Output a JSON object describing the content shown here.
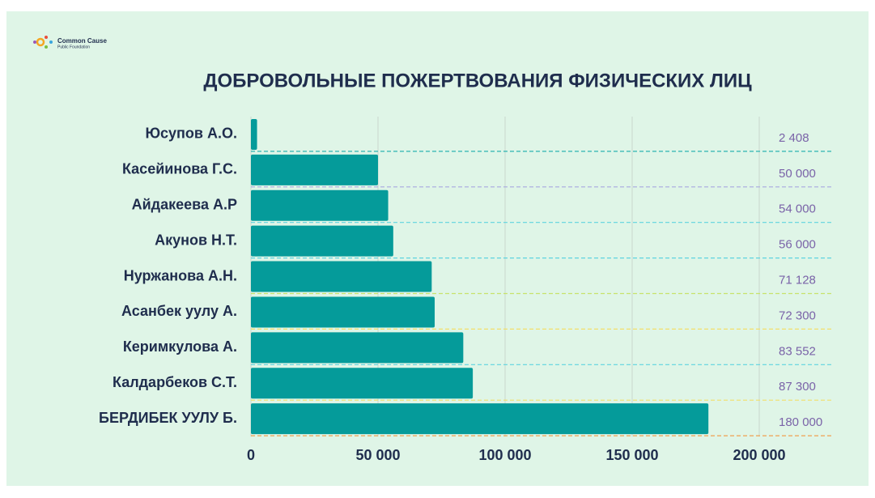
{
  "logo": {
    "name": "Common Cause",
    "subtitle": "Public Foundation"
  },
  "chart_data": {
    "type": "hbar",
    "title": "ДОБРОВОЛЬНЫЕ ПОЖЕРТВОВАНИЯ ФИЗИЧЕСКИХ ЛИЦ",
    "categories": [
      "Юсупов А.О.",
      "Касейинова Г.С.",
      "Айдакеева А.Р",
      "Акунов Н.Т.",
      "Нуржанова А.Н.",
      "Асанбек уулу А.",
      "Керимкулова А.",
      "Калдарбеков С.Т.",
      "БЕРДИБЕК УУЛУ Б."
    ],
    "values": [
      2408,
      50000,
      54000,
      56000,
      71128,
      72300,
      83552,
      87300,
      180000
    ],
    "value_labels": [
      "2 408",
      "50 000",
      "54 000",
      "56 000",
      "71 128",
      "72 300",
      "83 552",
      "87 300",
      "180 000"
    ],
    "color": "#059b9a",
    "xlim": [
      0,
      200000
    ],
    "xticks": [
      0,
      {
        "value": 50000,
        "label": "50 000"
      },
      {
        "value": 100000,
        "label": "100 000"
      },
      {
        "value": 150000,
        "label": "150 000"
      },
      {
        "value": 200000,
        "label": "200 000"
      }
    ],
    "grid": true
  }
}
